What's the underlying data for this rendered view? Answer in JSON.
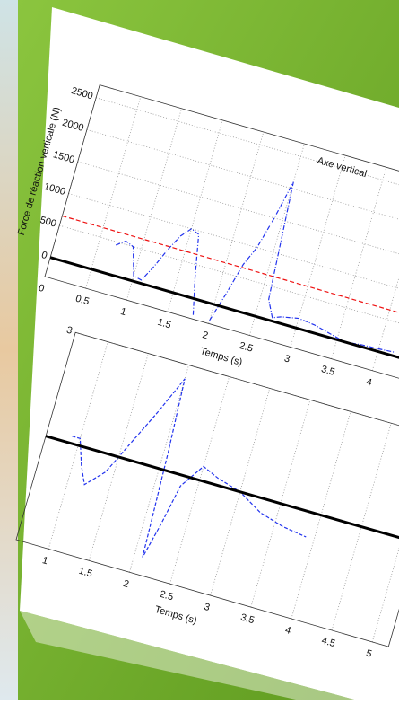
{
  "chart_data": [
    {
      "type": "line",
      "title": "Axe vertical",
      "y_label": "Force de réaction verticale (N)",
      "x_label": "Temps (s)",
      "xlim": [
        0,
        5
      ],
      "ylim": [
        -300,
        2700
      ],
      "xticks": [
        0,
        0.5,
        1,
        1.5,
        2,
        2.5,
        3,
        3.5,
        4
      ],
      "yticks": [
        0,
        500,
        1000,
        1500,
        2000,
        2500
      ],
      "grid": true,
      "series": [
        {
          "color": "#2233ee",
          "dash": "5 2 1 2",
          "x": [
            0.7,
            0.8,
            0.9,
            1.0,
            1.1,
            1.2,
            1.3,
            1.4,
            1.5,
            1.6,
            1.7,
            1.8,
            1.9,
            2.0,
            2.1,
            2.2,
            2.3,
            2.4,
            2.5,
            2.6,
            2.7,
            2.8,
            3.0,
            3.2,
            3.4,
            3.6,
            3.8,
            4.0,
            4.2
          ],
          "values": [
            450,
            550,
            500,
            80,
            50,
            300,
            600,
            850,
            1000,
            950,
            300,
            -250,
            null,
            -250,
            200,
            700,
            1000,
            1500,
            2100,
            300,
            50,
            100,
            150,
            120,
            60,
            0,
            30,
            40,
            60
          ]
        },
        {
          "color": "#ee1111",
          "dash": "5 3",
          "x": [
            0,
            5
          ],
          "values": [
            650,
            650
          ]
        },
        {
          "color": "#000000",
          "width": 3,
          "x": [
            0,
            5
          ],
          "values": [
            0,
            0
          ]
        }
      ]
    },
    {
      "type": "line",
      "x_label": "Temps (s)",
      "xlim": [
        0.6,
        5.2
      ],
      "ylim": [
        -3,
        3
      ],
      "xticks": [
        1,
        1.5,
        2,
        2.5,
        3,
        3.5,
        4,
        4.5,
        5
      ],
      "yticks": [
        3
      ],
      "grid": true,
      "series": [
        {
          "color": "#2233ee",
          "dash": "4 2",
          "x": [
            0.9,
            1.0,
            1.1,
            1.2,
            1.4,
            1.6,
            1.8,
            2.0,
            2.05,
            2.1,
            2.2,
            2.3,
            2.5,
            2.7,
            3.0,
            3.3,
            3.6,
            3.9
          ],
          "values": [
            0.2,
            0.2,
            -0.5,
            -1.0,
            -0.5,
            0.5,
            1.5,
            2.6,
            0.5,
            -2.5,
            -1.5,
            -0.3,
            0.4,
            0.2,
            0.0,
            -0.4,
            -0.6,
            -0.7
          ]
        },
        {
          "color": "#000000",
          "width": 3,
          "x": [
            0.6,
            5.2
          ],
          "values": [
            0,
            0
          ]
        }
      ]
    }
  ]
}
